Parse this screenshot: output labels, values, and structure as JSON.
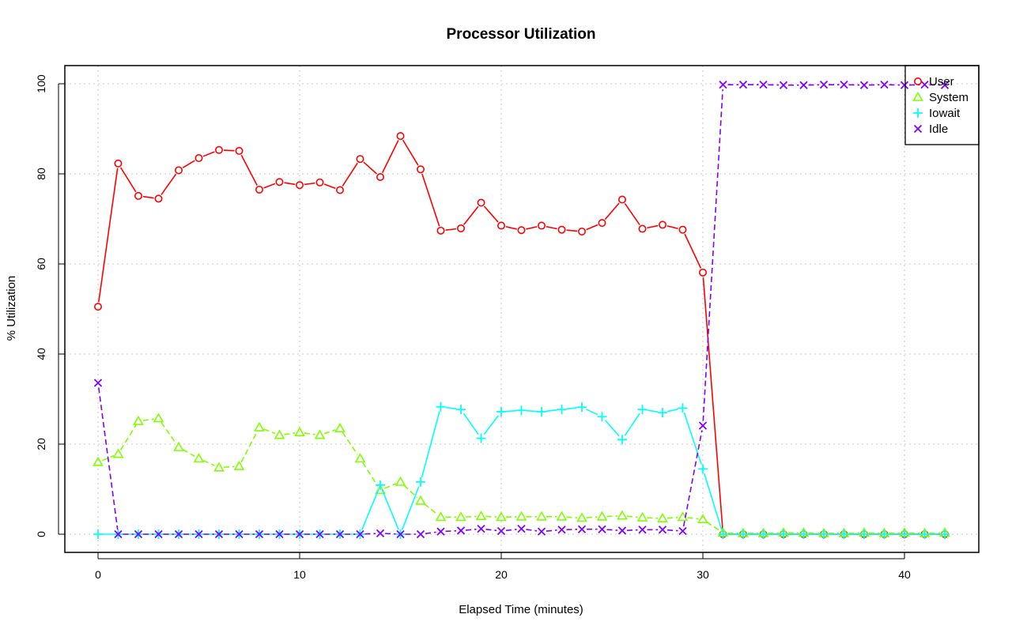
{
  "chart_data": {
    "type": "line",
    "title": "Processor Utilization",
    "xlabel": "Elapsed Time (minutes)",
    "ylabel": "% Utilization",
    "xlim": [
      0,
      42
    ],
    "ylim": [
      0,
      100
    ],
    "x_ticks": [
      0,
      10,
      20,
      30,
      40
    ],
    "y_ticks": [
      0,
      20,
      40,
      60,
      80,
      100
    ],
    "grid": true,
    "legend_position": "top-right",
    "x": [
      0,
      1,
      2,
      3,
      4,
      5,
      6,
      7,
      8,
      9,
      10,
      11,
      12,
      13,
      14,
      15,
      16,
      17,
      18,
      19,
      20,
      21,
      22,
      23,
      24,
      25,
      26,
      27,
      28,
      29,
      30,
      31,
      32,
      33,
      34,
      35,
      36,
      37,
      38,
      39,
      40,
      41,
      42
    ],
    "series": [
      {
        "name": "User",
        "color": "#ff0000",
        "marker": "circle",
        "line": "solid",
        "values": [
          50.5,
          82.3,
          75.1,
          74.5,
          80.8,
          83.5,
          85.3,
          85.1,
          76.5,
          78.2,
          77.5,
          78.1,
          76.4,
          83.3,
          79.3,
          88.4,
          81.0,
          67.4,
          67.9,
          73.6,
          68.5,
          67.5,
          68.5,
          67.6,
          67.2,
          69.1,
          74.3,
          67.8,
          68.7,
          67.6,
          58.1,
          0,
          0,
          0,
          0,
          0,
          0,
          0,
          0,
          0,
          0,
          0,
          0
        ]
      },
      {
        "name": "System",
        "color": "#80ff00",
        "marker": "triangle",
        "line": "dashed",
        "values": [
          16.0,
          17.8,
          25.1,
          25.7,
          19.3,
          16.8,
          14.8,
          15.1,
          23.7,
          22.0,
          22.6,
          22.0,
          23.5,
          16.8,
          9.8,
          11.6,
          7.4,
          3.8,
          3.8,
          4.0,
          3.8,
          3.9,
          3.9,
          3.9,
          3.6,
          3.9,
          4.1,
          3.7,
          3.5,
          3.8,
          3.3,
          0.3,
          0.2,
          0.2,
          0.3,
          0.3,
          0.2,
          0.2,
          0.3,
          0.2,
          0.3,
          0.2,
          0.3
        ]
      },
      {
        "name": "Iowait",
        "color": "#00ffff",
        "marker": "plus",
        "line": "solid",
        "values": [
          0,
          0,
          0,
          0,
          0,
          0,
          0,
          0,
          0,
          0,
          0,
          0,
          0,
          0,
          10.9,
          0,
          11.6,
          28.3,
          27.7,
          21.3,
          27.2,
          27.5,
          27.2,
          27.7,
          28.2,
          26.1,
          21.0,
          27.7,
          27.0,
          28.0,
          14.5,
          0,
          0,
          0,
          0,
          0,
          0,
          0,
          0,
          0,
          0,
          0,
          0
        ]
      },
      {
        "name": "Idle",
        "color": "#8000ff",
        "marker": "cross",
        "line": "dashed",
        "values": [
          33.6,
          0,
          0,
          0,
          0,
          0,
          0,
          0,
          0,
          0,
          0,
          0,
          0,
          0,
          0.2,
          0,
          0,
          0.6,
          0.8,
          1.2,
          0.7,
          1.2,
          0.6,
          1.0,
          1.1,
          1.1,
          0.8,
          1.0,
          1.0,
          0.7,
          24.1,
          99.8,
          99.8,
          99.8,
          99.7,
          99.7,
          99.8,
          99.8,
          99.7,
          99.8,
          99.7,
          99.8,
          99.7
        ]
      }
    ]
  }
}
